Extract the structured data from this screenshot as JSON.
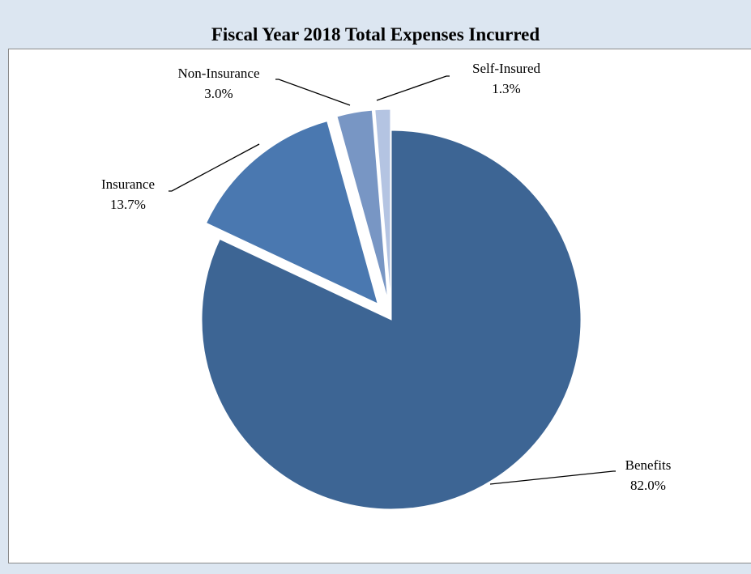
{
  "chart_data": {
    "type": "pie",
    "title": "Fiscal Year 2018 Total Expenses Incurred",
    "slices": [
      {
        "name": "Benefits",
        "value": 82.0,
        "label": "82.0%",
        "color": "#3d6594",
        "exploded": false
      },
      {
        "name": "Insurance",
        "value": 13.7,
        "label": "13.7%",
        "color": "#4a78b0",
        "exploded": true
      },
      {
        "name": "Non-Insurance",
        "value": 3.0,
        "label": "3.0%",
        "color": "#7896c4",
        "exploded": true
      },
      {
        "name": "Self-Insured",
        "value": 1.3,
        "label": "1.3%",
        "color": "#b4c4e2",
        "exploded": true
      }
    ]
  }
}
